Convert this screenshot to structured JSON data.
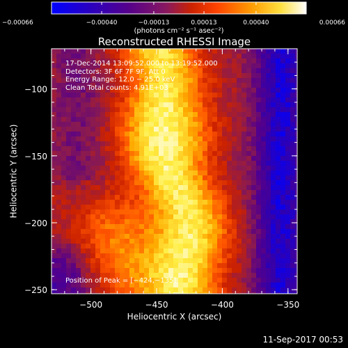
{
  "chart_data": {
    "type": "heatmap",
    "title": "Reconstructed RHESSI Image",
    "xlabel": "Heliocentric X (arcsec)",
    "ylabel": "Heliocentric Y (arcsec)",
    "xlim": [
      -530,
      -343
    ],
    "ylim": [
      -253,
      -70
    ],
    "xticks": [
      -500,
      -450,
      -400,
      -350
    ],
    "xtick_labels": [
      "−500",
      "−450",
      "−400",
      "−350"
    ],
    "yticks": [
      -100,
      -150,
      -200,
      -250
    ],
    "ytick_labels": [
      "−100",
      "−150",
      "−200",
      "−250"
    ],
    "colorbar": {
      "range": [
        -0.00066,
        0.00066
      ],
      "ticks": [
        -0.00066,
        -0.0004,
        -0.00013,
        0.00013,
        0.0004,
        0.00066
      ],
      "tick_labels": [
        "−0.00066",
        "−0.00040",
        "−0.00013",
        "0.00013",
        "0.00040",
        "0.00066"
      ],
      "units": "(photons cm⁻² s⁻¹ asec⁻²)",
      "colors": [
        "#0000ff",
        "#3300aa",
        "#55008a",
        "#8a1a50",
        "#cc2200",
        "#ff5500",
        "#ffaa00",
        "#ffee44",
        "#ffffff"
      ]
    },
    "annotations": [
      "17-Dec-2014 13:09:52.000 to 13:19:52.000",
      "Detectors: 3F 6F 7F 9F, Att 0",
      "Energy Range: 12.0 − 25.0 keV",
      "Clean     Total counts: 4.91E+03"
    ],
    "peak_label": "Position of Peak = [−424,−135]",
    "peak": [
      -424,
      -135
    ],
    "grid": false
  },
  "footer": {
    "timestamp": "11-Sep-2017 00:53"
  }
}
